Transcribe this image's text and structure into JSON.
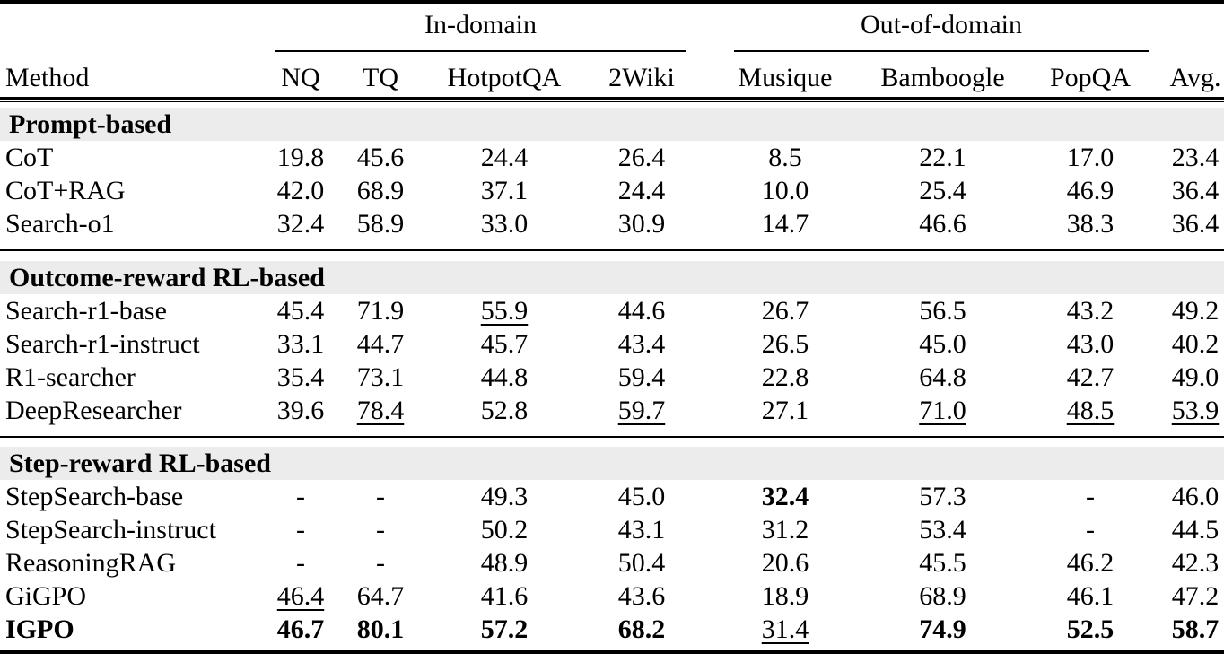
{
  "table": {
    "groups": [
      {
        "label": "In-domain"
      },
      {
        "label": "Out-of-domain"
      }
    ],
    "columns": [
      "Method",
      "NQ",
      "TQ",
      "HotpotQA",
      "2Wiki",
      "Musique",
      "Bamboogle",
      "PopQA",
      "Avg."
    ],
    "sections": [
      {
        "title": "Prompt-based",
        "rows": [
          {
            "method": "CoT",
            "bold_method": false,
            "cells": [
              {
                "v": "19.8",
                "f": ""
              },
              {
                "v": "45.6",
                "f": ""
              },
              {
                "v": "24.4",
                "f": ""
              },
              {
                "v": "26.4",
                "f": ""
              },
              {
                "v": "8.5",
                "f": ""
              },
              {
                "v": "22.1",
                "f": ""
              },
              {
                "v": "17.0",
                "f": ""
              },
              {
                "v": "23.4",
                "f": ""
              }
            ]
          },
          {
            "method": "CoT+RAG",
            "bold_method": false,
            "cells": [
              {
                "v": "42.0",
                "f": ""
              },
              {
                "v": "68.9",
                "f": ""
              },
              {
                "v": "37.1",
                "f": ""
              },
              {
                "v": "24.4",
                "f": ""
              },
              {
                "v": "10.0",
                "f": ""
              },
              {
                "v": "25.4",
                "f": ""
              },
              {
                "v": "46.9",
                "f": ""
              },
              {
                "v": "36.4",
                "f": ""
              }
            ]
          },
          {
            "method": "Search-o1",
            "bold_method": false,
            "cells": [
              {
                "v": "32.4",
                "f": ""
              },
              {
                "v": "58.9",
                "f": ""
              },
              {
                "v": "33.0",
                "f": ""
              },
              {
                "v": "30.9",
                "f": ""
              },
              {
                "v": "14.7",
                "f": ""
              },
              {
                "v": "46.6",
                "f": ""
              },
              {
                "v": "38.3",
                "f": ""
              },
              {
                "v": "36.4",
                "f": ""
              }
            ]
          }
        ]
      },
      {
        "title": "Outcome-reward RL-based",
        "rows": [
          {
            "method": "Search-r1-base",
            "bold_method": false,
            "cells": [
              {
                "v": "45.4",
                "f": ""
              },
              {
                "v": "71.9",
                "f": ""
              },
              {
                "v": "55.9",
                "f": "underline"
              },
              {
                "v": "44.6",
                "f": ""
              },
              {
                "v": "26.7",
                "f": ""
              },
              {
                "v": "56.5",
                "f": ""
              },
              {
                "v": "43.2",
                "f": ""
              },
              {
                "v": "49.2",
                "f": ""
              }
            ]
          },
          {
            "method": "Search-r1-instruct",
            "bold_method": false,
            "cells": [
              {
                "v": "33.1",
                "f": ""
              },
              {
                "v": "44.7",
                "f": ""
              },
              {
                "v": "45.7",
                "f": ""
              },
              {
                "v": "43.4",
                "f": ""
              },
              {
                "v": "26.5",
                "f": ""
              },
              {
                "v": "45.0",
                "f": ""
              },
              {
                "v": "43.0",
                "f": ""
              },
              {
                "v": "40.2",
                "f": ""
              }
            ]
          },
          {
            "method": "R1-searcher",
            "bold_method": false,
            "cells": [
              {
                "v": "35.4",
                "f": ""
              },
              {
                "v": "73.1",
                "f": ""
              },
              {
                "v": "44.8",
                "f": ""
              },
              {
                "v": "59.4",
                "f": ""
              },
              {
                "v": "22.8",
                "f": ""
              },
              {
                "v": "64.8",
                "f": ""
              },
              {
                "v": "42.7",
                "f": ""
              },
              {
                "v": "49.0",
                "f": ""
              }
            ]
          },
          {
            "method": "DeepResearcher",
            "bold_method": false,
            "cells": [
              {
                "v": "39.6",
                "f": ""
              },
              {
                "v": "78.4",
                "f": "underline"
              },
              {
                "v": "52.8",
                "f": ""
              },
              {
                "v": "59.7",
                "f": "underline"
              },
              {
                "v": "27.1",
                "f": ""
              },
              {
                "v": "71.0",
                "f": "underline"
              },
              {
                "v": "48.5",
                "f": "underline"
              },
              {
                "v": "53.9",
                "f": "underline"
              }
            ]
          }
        ]
      },
      {
        "title": "Step-reward RL-based",
        "rows": [
          {
            "method": "StepSearch-base",
            "bold_method": false,
            "cells": [
              {
                "v": "-",
                "f": ""
              },
              {
                "v": "-",
                "f": ""
              },
              {
                "v": "49.3",
                "f": ""
              },
              {
                "v": "45.0",
                "f": ""
              },
              {
                "v": "32.4",
                "f": "bold"
              },
              {
                "v": "57.3",
                "f": ""
              },
              {
                "v": "-",
                "f": ""
              },
              {
                "v": "46.0",
                "f": ""
              }
            ]
          },
          {
            "method": "StepSearch-instruct",
            "bold_method": false,
            "cells": [
              {
                "v": "-",
                "f": ""
              },
              {
                "v": "-",
                "f": ""
              },
              {
                "v": "50.2",
                "f": ""
              },
              {
                "v": "43.1",
                "f": ""
              },
              {
                "v": "31.2",
                "f": ""
              },
              {
                "v": "53.4",
                "f": ""
              },
              {
                "v": "-",
                "f": ""
              },
              {
                "v": "44.5",
                "f": ""
              }
            ]
          },
          {
            "method": "ReasoningRAG",
            "bold_method": false,
            "cells": [
              {
                "v": "-",
                "f": ""
              },
              {
                "v": "-",
                "f": ""
              },
              {
                "v": "48.9",
                "f": ""
              },
              {
                "v": "50.4",
                "f": ""
              },
              {
                "v": "20.6",
                "f": ""
              },
              {
                "v": "45.5",
                "f": ""
              },
              {
                "v": "46.2",
                "f": ""
              },
              {
                "v": "42.3",
                "f": ""
              }
            ]
          },
          {
            "method": "GiGPO",
            "bold_method": false,
            "cells": [
              {
                "v": "46.4",
                "f": "underline"
              },
              {
                "v": "64.7",
                "f": ""
              },
              {
                "v": "41.6",
                "f": ""
              },
              {
                "v": "43.6",
                "f": ""
              },
              {
                "v": "18.9",
                "f": ""
              },
              {
                "v": "68.9",
                "f": ""
              },
              {
                "v": "46.1",
                "f": ""
              },
              {
                "v": "47.2",
                "f": ""
              }
            ]
          },
          {
            "method": "IGPO",
            "bold_method": true,
            "cells": [
              {
                "v": "46.7",
                "f": "bold"
              },
              {
                "v": "80.1",
                "f": "bold"
              },
              {
                "v": "57.2",
                "f": "bold"
              },
              {
                "v": "68.2",
                "f": "bold"
              },
              {
                "v": "31.4",
                "f": "underline"
              },
              {
                "v": "74.9",
                "f": "bold"
              },
              {
                "v": "52.5",
                "f": "bold"
              },
              {
                "v": "58.7",
                "f": "bold"
              }
            ]
          }
        ]
      }
    ]
  },
  "colors": {
    "section_band": "#ececec",
    "rule": "#000000",
    "text": "#000000"
  }
}
